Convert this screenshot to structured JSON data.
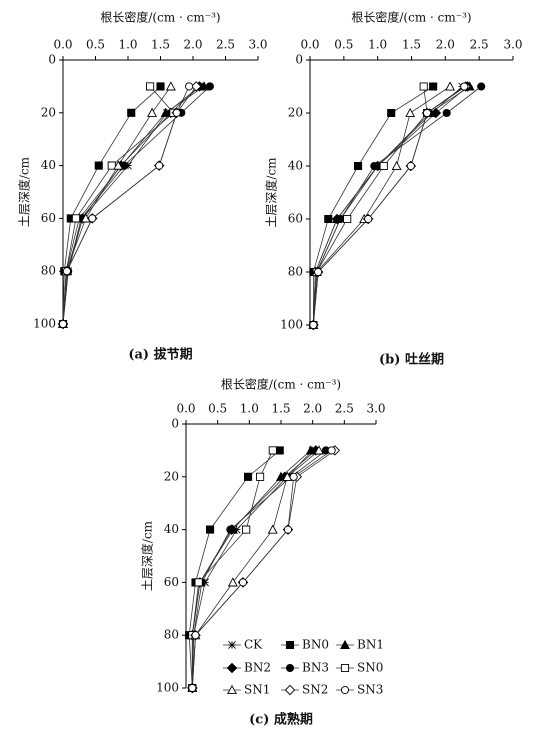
{
  "chart_data": [
    {
      "type": "line",
      "x_label": "根长密度/(cm · cm⁻³)",
      "y_label": "土层深度/cm",
      "caption": "(a) 拔节期",
      "xlim": [
        0,
        3
      ],
      "ylim": [
        0,
        100
      ],
      "y_inverted": true,
      "x_axis_top": true,
      "xticks": [
        {
          "value": 0,
          "label": "0.0"
        },
        0.5,
        {
          "value": 1,
          "label": "1.0"
        },
        1.5,
        {
          "value": 2,
          "label": "2.0"
        },
        2.5,
        {
          "value": 3,
          "label": "3.0"
        }
      ],
      "yticks": [
        0,
        20,
        40,
        60,
        80,
        100
      ],
      "legend": false,
      "y": [
        10,
        20,
        40,
        60,
        80,
        100
      ],
      "series": [
        {
          "marker": "asterisk",
          "values": [
            2.1,
            1.6,
            1.0,
            0.3,
            0.08,
            0.0
          ]
        },
        {
          "marker": "filled-square",
          "values": [
            1.5,
            1.05,
            0.55,
            0.12,
            0.02,
            0.0
          ]
        },
        {
          "marker": "filled-triangle",
          "values": [
            2.17,
            1.58,
            0.9,
            0.25,
            0.05,
            0.0
          ]
        },
        {
          "marker": "filled-diamond",
          "values": [
            2.1,
            1.66,
            0.89,
            0.3,
            0.06,
            0.0
          ]
        },
        {
          "marker": "filled-circle",
          "values": [
            2.26,
            1.82,
            0.94,
            0.28,
            0.08,
            0.0
          ]
        },
        {
          "marker": "open-square",
          "values": [
            1.34,
            1.7,
            0.75,
            0.2,
            0.05,
            0.0
          ]
        },
        {
          "marker": "open-triangle",
          "values": [
            1.66,
            1.37,
            0.85,
            0.35,
            0.05,
            0.0
          ]
        },
        {
          "marker": "open-diamond",
          "values": [
            2.05,
            1.75,
            1.48,
            0.45,
            0.06,
            0.0
          ]
        },
        {
          "marker": "open-circle",
          "values": [
            1.94,
            1.75,
            1.48,
            0.45,
            0.06,
            0.0
          ]
        }
      ]
    },
    {
      "type": "line",
      "x_label": "根长密度/(cm · cm⁻³)",
      "y_label": "土层深度/cm",
      "caption": "(b) 吐丝期",
      "xlim": [
        0,
        3
      ],
      "ylim": [
        0,
        100
      ],
      "y_inverted": true,
      "x_axis_top": true,
      "xticks": [
        {
          "value": 0,
          "label": "0.0"
        },
        0.5,
        {
          "value": 1,
          "label": "1.0"
        },
        1.5,
        {
          "value": 2,
          "label": "2.0"
        },
        2.5,
        {
          "value": 3,
          "label": "3.0"
        }
      ],
      "yticks": [
        0,
        20,
        40,
        60,
        80,
        100
      ],
      "legend": false,
      "y": [
        10,
        20,
        40,
        60,
        80,
        100
      ],
      "series": [
        {
          "marker": "asterisk",
          "values": [
            2.25,
            1.8,
            1.0,
            0.45,
            0.1,
            0.05
          ]
        },
        {
          "marker": "filled-square",
          "values": [
            1.82,
            1.2,
            0.71,
            0.27,
            0.05,
            0.05
          ]
        },
        {
          "marker": "filled-triangle",
          "values": [
            2.36,
            1.77,
            1.0,
            0.4,
            0.08,
            0.05
          ]
        },
        {
          "marker": "filled-diamond",
          "values": [
            2.33,
            1.86,
            1.0,
            0.4,
            0.08,
            0.05
          ]
        },
        {
          "marker": "filled-circle",
          "values": [
            2.53,
            2.02,
            0.95,
            0.45,
            0.1,
            0.05
          ]
        },
        {
          "marker": "open-square",
          "values": [
            1.68,
            1.73,
            1.09,
            0.55,
            0.1,
            0.05
          ]
        },
        {
          "marker": "open-triangle",
          "values": [
            2.07,
            1.48,
            1.28,
            0.8,
            0.1,
            0.05
          ]
        },
        {
          "marker": "open-diamond",
          "values": [
            2.3,
            1.73,
            1.49,
            0.86,
            0.12,
            0.05
          ]
        },
        {
          "marker": "open-circle",
          "values": [
            2.28,
            1.73,
            1.49,
            0.86,
            0.12,
            0.05
          ]
        }
      ]
    },
    {
      "type": "line",
      "x_label": "根长密度/(cm · cm⁻³)",
      "y_label": "土层深度/cm",
      "caption": "(c) 成熟期",
      "xlim": [
        0,
        3
      ],
      "ylim": [
        0,
        100
      ],
      "y_inverted": true,
      "x_axis_top": true,
      "xticks": [
        {
          "value": 0,
          "label": "0.0"
        },
        0.5,
        {
          "value": 1,
          "label": "1.0"
        },
        1.5,
        {
          "value": 2,
          "label": "2.0"
        },
        2.5,
        {
          "value": 3,
          "label": "3.0"
        }
      ],
      "yticks": [
        0,
        20,
        40,
        60,
        80,
        100
      ],
      "legend": true,
      "y": [
        10,
        20,
        40,
        60,
        80,
        100
      ],
      "series": [
        {
          "name": "CK",
          "marker": "asterisk",
          "values": [
            2.0,
            1.6,
            0.8,
            0.3,
            0.12,
            0.1
          ]
        },
        {
          "name": "BN0",
          "marker": "filled-square",
          "values": [
            1.48,
            0.98,
            0.38,
            0.15,
            0.05,
            0.1
          ]
        },
        {
          "name": "BN1",
          "marker": "filled-triangle",
          "values": [
            1.97,
            1.5,
            0.74,
            0.22,
            0.1,
            0.1
          ]
        },
        {
          "name": "BN2",
          "marker": "filled-diamond",
          "values": [
            2.05,
            1.56,
            0.72,
            0.22,
            0.1,
            0.1
          ]
        },
        {
          "name": "BN3",
          "marker": "filled-circle",
          "values": [
            2.21,
            1.66,
            0.7,
            0.25,
            0.12,
            0.1
          ]
        },
        {
          "name": "SN0",
          "marker": "open-square",
          "values": [
            1.37,
            1.17,
            0.95,
            0.2,
            0.1,
            0.1
          ]
        },
        {
          "name": "SN1",
          "marker": "open-triangle",
          "values": [
            2.1,
            1.6,
            1.37,
            0.74,
            0.15,
            0.1
          ]
        },
        {
          "name": "SN2",
          "marker": "open-diamond",
          "values": [
            2.35,
            1.75,
            1.61,
            0.9,
            0.15,
            0.1
          ]
        },
        {
          "name": "SN3",
          "marker": "open-circle",
          "values": [
            2.3,
            1.7,
            1.61,
            0.9,
            0.15,
            0.1
          ]
        }
      ]
    }
  ]
}
